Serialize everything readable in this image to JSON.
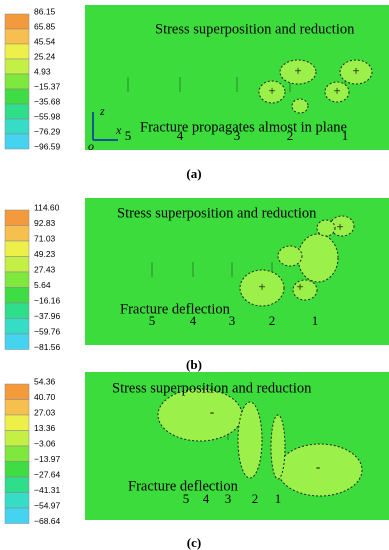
{
  "panels": [
    {
      "label": "(a)",
      "legend": [
        "86.15",
        "65.85",
        "45.54",
        "25.24",
        "4.93",
        "−15.37",
        "−35.68",
        "−55.98",
        "−76.29",
        "−96.59"
      ],
      "annotations": [
        "Stress superposition and reduction",
        "Fracture propagates almost in plane"
      ],
      "fractures": [
        "5",
        "4",
        "3",
        "2",
        "1"
      ],
      "axes": [
        "z",
        "x",
        "o"
      ]
    },
    {
      "label": "(b)",
      "legend": [
        "114.60",
        "92.83",
        "71.03",
        "49.23",
        "27.43",
        "5.64",
        "−16.16",
        "−37.96",
        "−59.76",
        "−81.56"
      ],
      "annotations": [
        "Stress superposition and reduction",
        "Fracture deflection"
      ],
      "fractures": [
        "5",
        "4",
        "3",
        "2",
        "1"
      ]
    },
    {
      "label": "(c)",
      "legend": [
        "54.36",
        "40.70",
        "27.03",
        "13.36",
        "−3.06",
        "−13.97",
        "−27.64",
        "−41.31",
        "−54.97",
        "−68.64"
      ],
      "annotations": [
        "Stress superposition and reduction",
        "Fracture deflection"
      ],
      "fractures": [
        "5",
        "4",
        "3",
        "2",
        "1"
      ]
    }
  ]
}
